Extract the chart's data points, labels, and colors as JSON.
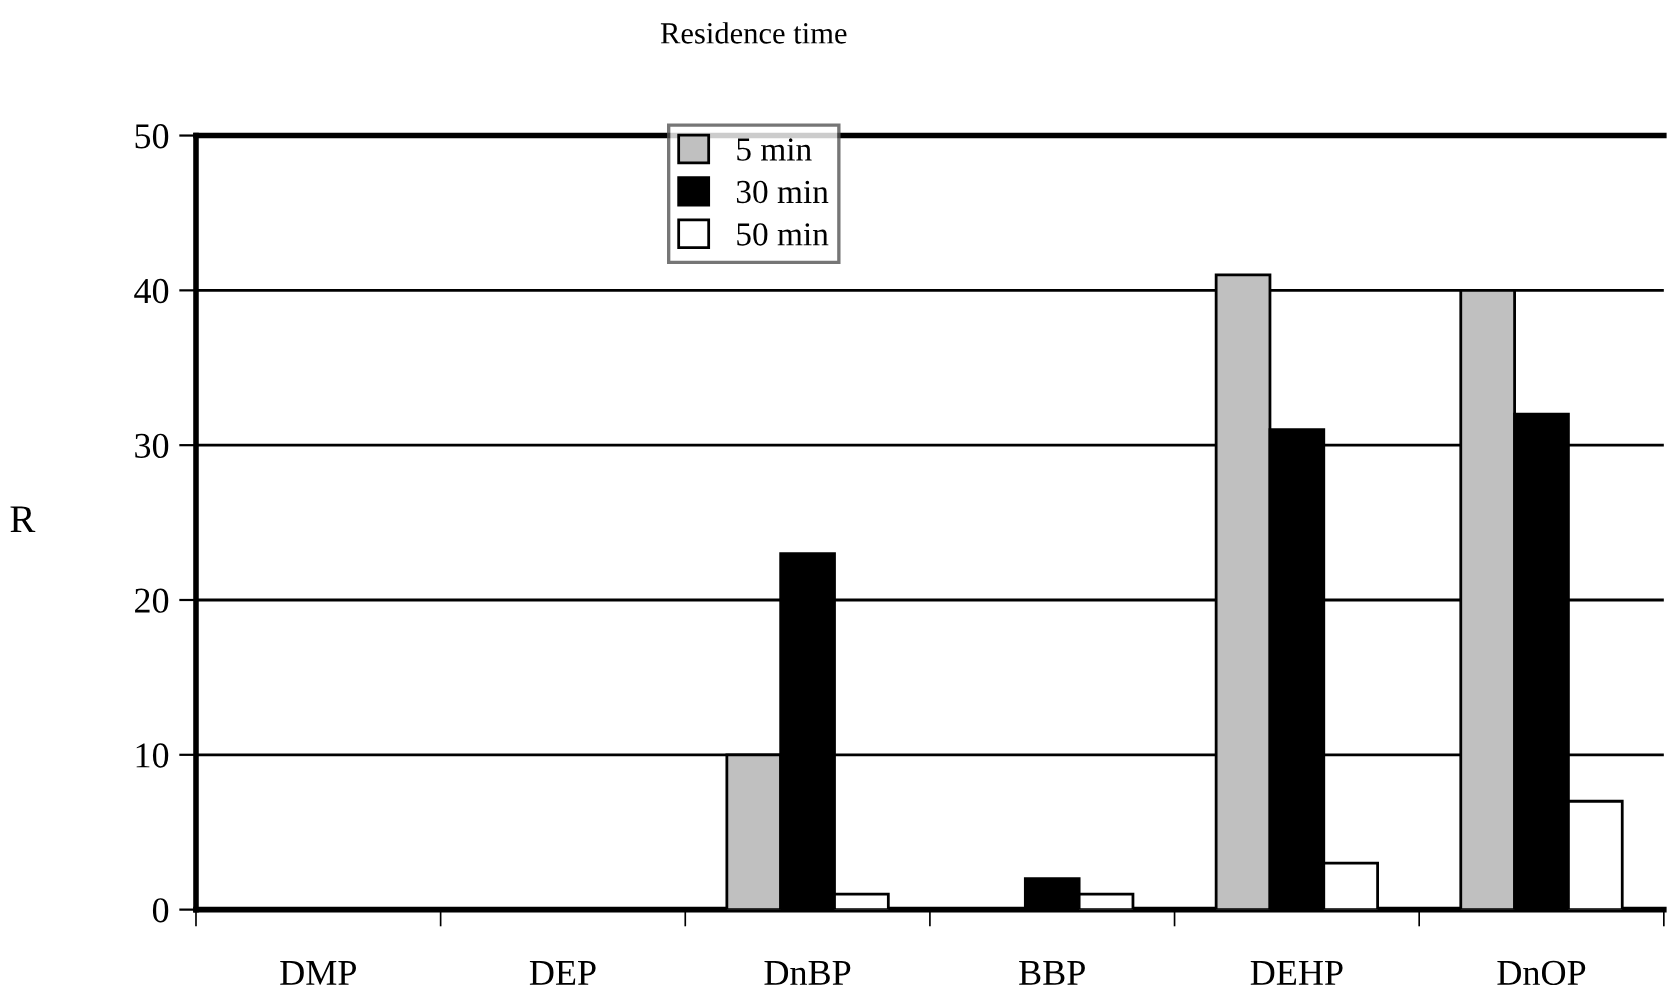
{
  "chart_data": {
    "type": "bar",
    "categories": [
      "DMP",
      "DEP",
      "DnBP",
      "BBP",
      "DEHP",
      "DnOP"
    ],
    "ylabel": "R",
    "legend_title": "Residence time",
    "series": [
      {
        "name": "5 min",
        "color": "#c0c0c0",
        "values": [
          0,
          0,
          10,
          0,
          41,
          40
        ]
      },
      {
        "name": "30 min",
        "color": "#000000",
        "values": [
          0,
          0,
          23,
          2,
          31,
          32
        ]
      },
      {
        "name": "50 min",
        "color": "#ffffff",
        "values": [
          0,
          0,
          1,
          1,
          3,
          7
        ]
      }
    ],
    "ylim": [
      0,
      50
    ],
    "yticks": [
      0,
      10,
      20,
      30,
      40,
      50
    ],
    "grid": "y",
    "legend": "top"
  }
}
